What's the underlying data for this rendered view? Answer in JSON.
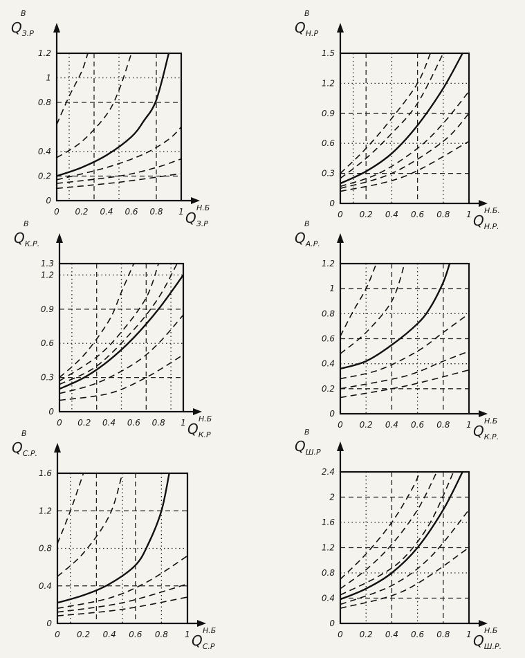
{
  "charts": [
    {
      "id": "c1",
      "y_label": {
        "main": "Q",
        "sub": "З.Р",
        "sup": "В"
      },
      "x_label": {
        "main": "Q",
        "sub": "З.Р",
        "sup": "Н.Б"
      },
      "x_ticks": [
        "0",
        "0.2",
        "0.4",
        "0.6",
        "0.8",
        "1"
      ],
      "y_ticks": [
        "0",
        "0.2",
        "0.4",
        "0.8",
        "1",
        "1.2"
      ]
    },
    {
      "id": "c2",
      "y_label": {
        "main": "Q",
        "sub": "Н.Р",
        "sup": "В"
      },
      "x_label": {
        "main": "Q",
        "sub": "Н.Р.",
        "sup": "Н.Б."
      },
      "x_ticks": [
        "0",
        "0.2",
        "0.4",
        "0.6",
        "0.8",
        "1"
      ],
      "y_ticks": [
        "0",
        "0.3",
        "0.6",
        "0.9",
        "1.2",
        "1.5"
      ]
    },
    {
      "id": "c3",
      "y_label": {
        "main": "Q",
        "sub": "К.Р.",
        "sup": "В"
      },
      "x_label": {
        "main": "Q",
        "sub": "К.Р",
        "sup": "Н.Б"
      },
      "x_ticks": [
        "0",
        "0.2",
        "0.4",
        "0.6",
        "0.8",
        "1"
      ],
      "y_ticks": [
        "0",
        "0.3",
        "0.6",
        "0.9",
        "1.2",
        "1.3"
      ]
    },
    {
      "id": "c4",
      "y_label": {
        "main": "Q",
        "sub": "А.Р.",
        "sup": "В"
      },
      "x_label": {
        "main": "Q",
        "sub": "К.Р.",
        "sup": "Н.Б"
      },
      "x_ticks": [
        "0",
        "0.2",
        "0.4",
        "0.6",
        "0.8",
        "1"
      ],
      "y_ticks": [
        "0",
        "0.2",
        "0.4",
        "0.6",
        "0.8",
        "1",
        "1.2"
      ]
    },
    {
      "id": "c5",
      "y_label": {
        "main": "Q",
        "sub": "С.Р.",
        "sup": "В"
      },
      "x_label": {
        "main": "Q",
        "sub": "С.Р",
        "sup": "Н.Б"
      },
      "x_ticks": [
        "0",
        "0.2",
        "0.4",
        "0.6",
        "0.8",
        "1"
      ],
      "y_ticks": [
        "0",
        "0.4",
        "0.8",
        "1.2",
        "1.6"
      ]
    },
    {
      "id": "c6",
      "y_label": {
        "main": "Q",
        "sub": "Ш.Р",
        "sup": "В"
      },
      "x_label": {
        "main": "Q",
        "sub": "Ш.Р.",
        "sup": "Н.Б"
      },
      "x_ticks": [
        "0",
        "0.2",
        "0.4",
        "0.6",
        "0.8",
        "1"
      ],
      "y_ticks": [
        "0",
        "0.4",
        "0.8",
        "1.2",
        "1.6",
        "2",
        "2.4"
      ]
    }
  ],
  "chart_data": [
    {
      "type": "line",
      "xlim": [
        0,
        1
      ],
      "ylim": [
        0,
        1.2
      ],
      "grid": true,
      "grid_x": [
        0.1,
        0.3,
        0.5,
        0.8
      ],
      "grid_y": [
        0.2,
        0.4,
        0.8,
        1.0
      ],
      "series": [
        {
          "style": "dashed",
          "points": [
            [
              0,
              0.62
            ],
            [
              0.1,
              0.85
            ],
            [
              0.2,
              1.05
            ],
            [
              0.25,
              1.2
            ]
          ]
        },
        {
          "style": "dashed",
          "points": [
            [
              0,
              0.35
            ],
            [
              0.2,
              0.48
            ],
            [
              0.4,
              0.7
            ],
            [
              0.5,
              0.9
            ],
            [
              0.6,
              1.2
            ]
          ]
        },
        {
          "style": "solid",
          "points": [
            [
              0,
              0.2
            ],
            [
              0.2,
              0.27
            ],
            [
              0.4,
              0.37
            ],
            [
              0.6,
              0.52
            ],
            [
              0.7,
              0.65
            ],
            [
              0.8,
              0.82
            ],
            [
              0.9,
              1.2
            ]
          ]
        },
        {
          "style": "dashed",
          "points": [
            [
              0,
              0.17
            ],
            [
              0.4,
              0.27
            ],
            [
              0.7,
              0.38
            ],
            [
              0.9,
              0.5
            ],
            [
              1.0,
              0.6
            ]
          ]
        },
        {
          "style": "dashed",
          "points": [
            [
              0,
              0.14
            ],
            [
              0.5,
              0.2
            ],
            [
              0.8,
              0.27
            ],
            [
              1.0,
              0.34
            ]
          ]
        },
        {
          "style": "dashed",
          "points": [
            [
              0,
              0.1
            ],
            [
              0.5,
              0.15
            ],
            [
              1.0,
              0.22
            ]
          ]
        }
      ]
    },
    {
      "type": "line",
      "xlim": [
        0,
        1
      ],
      "ylim": [
        0,
        1.5
      ],
      "grid": true,
      "grid_x": [
        0.1,
        0.2,
        0.4,
        0.6,
        0.8
      ],
      "grid_y": [
        0.3,
        0.6,
        0.9,
        1.2
      ],
      "series": [
        {
          "style": "dashed",
          "points": [
            [
              0,
              0.3
            ],
            [
              0.2,
              0.55
            ],
            [
              0.4,
              0.85
            ],
            [
              0.6,
              1.2
            ],
            [
              0.7,
              1.5
            ]
          ]
        },
        {
          "style": "dashed",
          "points": [
            [
              0,
              0.25
            ],
            [
              0.2,
              0.45
            ],
            [
              0.4,
              0.7
            ],
            [
              0.6,
              1.0
            ],
            [
              0.8,
              1.5
            ]
          ]
        },
        {
          "style": "solid",
          "points": [
            [
              0,
              0.2
            ],
            [
              0.2,
              0.32
            ],
            [
              0.4,
              0.5
            ],
            [
              0.6,
              0.78
            ],
            [
              0.8,
              1.15
            ],
            [
              0.95,
              1.5
            ]
          ]
        },
        {
          "style": "dashed",
          "points": [
            [
              0,
              0.17
            ],
            [
              0.3,
              0.3
            ],
            [
              0.6,
              0.55
            ],
            [
              0.8,
              0.8
            ],
            [
              1.0,
              1.12
            ]
          ]
        },
        {
          "style": "dashed",
          "points": [
            [
              0,
              0.15
            ],
            [
              0.4,
              0.3
            ],
            [
              0.8,
              0.62
            ],
            [
              1.0,
              0.9
            ]
          ]
        },
        {
          "style": "dashed",
          "points": [
            [
              0,
              0.12
            ],
            [
              0.5,
              0.27
            ],
            [
              1.0,
              0.62
            ]
          ]
        }
      ]
    },
    {
      "type": "line",
      "xlim": [
        0,
        1
      ],
      "ylim": [
        0,
        1.3
      ],
      "grid": true,
      "grid_x": [
        0.1,
        0.3,
        0.5,
        0.7,
        0.9
      ],
      "grid_y": [
        0.3,
        0.6,
        0.9,
        1.2
      ],
      "series": [
        {
          "style": "dashed",
          "points": [
            [
              0,
              0.3
            ],
            [
              0.2,
              0.5
            ],
            [
              0.4,
              0.8
            ],
            [
              0.5,
              1.05
            ],
            [
              0.6,
              1.3
            ]
          ]
        },
        {
          "style": "dashed",
          "points": [
            [
              0,
              0.27
            ],
            [
              0.3,
              0.48
            ],
            [
              0.5,
              0.7
            ],
            [
              0.7,
              1.0
            ],
            [
              0.8,
              1.3
            ]
          ]
        },
        {
          "style": "dashed",
          "points": [
            [
              0,
              0.24
            ],
            [
              0.3,
              0.4
            ],
            [
              0.6,
              0.72
            ],
            [
              0.8,
              1.0
            ],
            [
              0.95,
              1.3
            ]
          ]
        },
        {
          "style": "solid",
          "points": [
            [
              0,
              0.2
            ],
            [
              0.2,
              0.3
            ],
            [
              0.4,
              0.45
            ],
            [
              0.6,
              0.65
            ],
            [
              0.8,
              0.9
            ],
            [
              1.0,
              1.2
            ]
          ]
        },
        {
          "style": "dashed",
          "points": [
            [
              0,
              0.16
            ],
            [
              0.3,
              0.25
            ],
            [
              0.6,
              0.42
            ],
            [
              0.8,
              0.6
            ],
            [
              1.0,
              0.85
            ]
          ]
        },
        {
          "style": "dashed",
          "points": [
            [
              0,
              0.1
            ],
            [
              0.4,
              0.16
            ],
            [
              0.7,
              0.3
            ],
            [
              1.0,
              0.5
            ]
          ]
        }
      ]
    },
    {
      "type": "line",
      "xlim": [
        0,
        1
      ],
      "ylim": [
        0,
        1.2
      ],
      "grid": true,
      "grid_x": [
        0.2,
        0.4,
        0.6,
        0.8
      ],
      "grid_y": [
        0.2,
        0.4,
        0.6,
        0.8,
        1.0
      ],
      "series": [
        {
          "style": "dashed",
          "points": [
            [
              0,
              0.62
            ],
            [
              0.1,
              0.82
            ],
            [
              0.2,
              1.0
            ],
            [
              0.28,
              1.2
            ]
          ]
        },
        {
          "style": "dashed",
          "points": [
            [
              0,
              0.48
            ],
            [
              0.2,
              0.65
            ],
            [
              0.4,
              0.9
            ],
            [
              0.5,
              1.2
            ]
          ]
        },
        {
          "style": "solid",
          "points": [
            [
              0,
              0.36
            ],
            [
              0.2,
              0.42
            ],
            [
              0.4,
              0.55
            ],
            [
              0.6,
              0.72
            ],
            [
              0.7,
              0.85
            ],
            [
              0.8,
              1.05
            ],
            [
              0.85,
              1.2
            ]
          ]
        },
        {
          "style": "dashed",
          "points": [
            [
              0,
              0.28
            ],
            [
              0.3,
              0.35
            ],
            [
              0.6,
              0.5
            ],
            [
              0.8,
              0.65
            ],
            [
              1.0,
              0.8
            ]
          ]
        },
        {
          "style": "dashed",
          "points": [
            [
              0,
              0.2
            ],
            [
              0.5,
              0.3
            ],
            [
              0.8,
              0.42
            ],
            [
              1.0,
              0.5
            ]
          ]
        },
        {
          "style": "dashed",
          "points": [
            [
              0,
              0.13
            ],
            [
              0.5,
              0.22
            ],
            [
              1.0,
              0.35
            ]
          ]
        }
      ]
    },
    {
      "type": "line",
      "xlim": [
        0,
        1
      ],
      "ylim": [
        0,
        1.6
      ],
      "grid": true,
      "grid_x": [
        0.1,
        0.3,
        0.5,
        0.6,
        0.8
      ],
      "grid_y": [
        0.4,
        0.8,
        1.2
      ],
      "series": [
        {
          "style": "dashed",
          "points": [
            [
              0,
              0.85
            ],
            [
              0.1,
              1.2
            ],
            [
              0.2,
              1.6
            ]
          ]
        },
        {
          "style": "dashed",
          "points": [
            [
              0,
              0.5
            ],
            [
              0.2,
              0.75
            ],
            [
              0.4,
              1.15
            ],
            [
              0.5,
              1.6
            ]
          ]
        },
        {
          "style": "solid",
          "points": [
            [
              0,
              0.22
            ],
            [
              0.2,
              0.3
            ],
            [
              0.4,
              0.42
            ],
            [
              0.6,
              0.62
            ],
            [
              0.7,
              0.85
            ],
            [
              0.8,
              1.2
            ],
            [
              0.86,
              1.6
            ]
          ]
        },
        {
          "style": "dashed",
          "points": [
            [
              0,
              0.16
            ],
            [
              0.4,
              0.27
            ],
            [
              0.7,
              0.45
            ],
            [
              1.0,
              0.72
            ]
          ]
        },
        {
          "style": "dashed",
          "points": [
            [
              0,
              0.12
            ],
            [
              0.5,
              0.22
            ],
            [
              1.0,
              0.42
            ]
          ]
        },
        {
          "style": "dashed",
          "points": [
            [
              0,
              0.08
            ],
            [
              0.5,
              0.15
            ],
            [
              1.0,
              0.28
            ]
          ]
        }
      ]
    },
    {
      "type": "line",
      "xlim": [
        0,
        1
      ],
      "ylim": [
        0,
        2.4
      ],
      "grid": true,
      "grid_x": [
        0.2,
        0.4,
        0.6,
        0.8
      ],
      "grid_y": [
        0.4,
        0.8,
        1.2,
        1.6,
        2.0
      ],
      "series": [
        {
          "style": "dashed",
          "points": [
            [
              0,
              0.7
            ],
            [
              0.2,
              1.1
            ],
            [
              0.4,
              1.6
            ],
            [
              0.55,
              2.1
            ],
            [
              0.62,
              2.4
            ]
          ]
        },
        {
          "style": "dashed",
          "points": [
            [
              0,
              0.55
            ],
            [
              0.2,
              0.85
            ],
            [
              0.4,
              1.25
            ],
            [
              0.6,
              1.8
            ],
            [
              0.75,
              2.4
            ]
          ]
        },
        {
          "style": "dashed",
          "points": [
            [
              0,
              0.45
            ],
            [
              0.3,
              0.75
            ],
            [
              0.5,
              1.05
            ],
            [
              0.7,
              1.6
            ],
            [
              0.88,
              2.4
            ]
          ]
        },
        {
          "style": "solid",
          "points": [
            [
              0,
              0.38
            ],
            [
              0.2,
              0.55
            ],
            [
              0.4,
              0.8
            ],
            [
              0.6,
              1.2
            ],
            [
              0.8,
              1.8
            ],
            [
              0.95,
              2.4
            ]
          ]
        },
        {
          "style": "dashed",
          "points": [
            [
              0,
              0.3
            ],
            [
              0.4,
              0.6
            ],
            [
              0.7,
              1.05
            ],
            [
              1.0,
              1.8
            ]
          ]
        },
        {
          "style": "dashed",
          "points": [
            [
              0,
              0.24
            ],
            [
              0.5,
              0.52
            ],
            [
              1.0,
              1.2
            ]
          ]
        }
      ]
    }
  ]
}
